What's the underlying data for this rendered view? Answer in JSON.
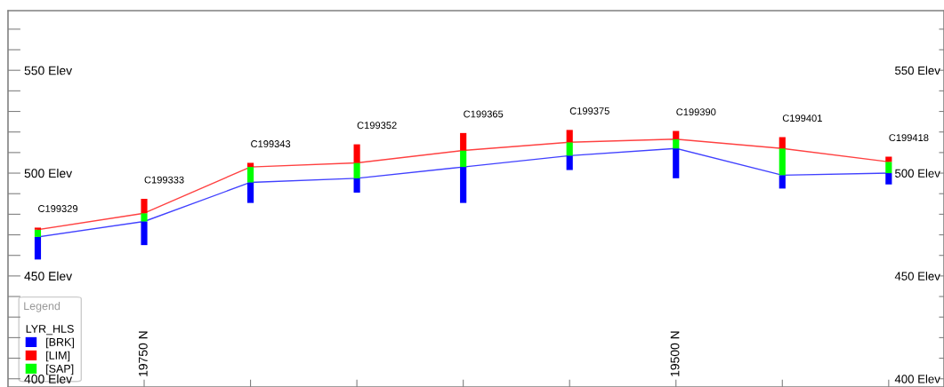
{
  "chart_data": {
    "type": "bar",
    "legend": "bottom left",
    "legend_title": "LYR_HLS",
    "x": [
      19800,
      19750,
      19700,
      19650,
      19600,
      19550,
      19500,
      19450,
      19400
    ],
    "series": [
      {
        "name": "[BRK]",
        "color": "#0000ff",
        "base": [
          458,
          465,
          485.5,
          490.5,
          485.5,
          501.5,
          497.5,
          492.5,
          494.5
        ],
        "values": [
          11,
          11.5,
          10,
          7,
          17.5,
          7,
          14.5,
          6.5,
          5.5
        ]
      },
      {
        "name": "[SAP]",
        "color": "#00ff00",
        "base": [
          469,
          476.5,
          495.5,
          497.5,
          503,
          508.5,
          512,
          499,
          500
        ],
        "values": [
          3.5,
          4,
          7.5,
          7.5,
          8,
          6.5,
          4.5,
          13,
          5.5
        ]
      },
      {
        "name": "[LIM]",
        "color": "#ff0000",
        "base": [
          472.5,
          480.5,
          503,
          505,
          511,
          515,
          516.5,
          512,
          505.5
        ],
        "values": [
          1,
          7,
          2,
          9,
          8.5,
          6,
          4,
          5.5,
          2.5
        ]
      },
      {
        "type": "line",
        "color": "#ff0000",
        "x": [
          19800,
          19750,
          19700,
          19650,
          19600,
          19550,
          19500,
          19450,
          19400
        ],
        "values": [
          472.5,
          480.5,
          503,
          505,
          511,
          515,
          516.5,
          512,
          505.5
        ]
      },
      {
        "type": "line",
        "color": "#0000ff",
        "x": [
          19800,
          19750,
          19700,
          19650,
          19600,
          19550,
          19500,
          19450,
          19400
        ],
        "values": [
          469,
          476.5,
          495.5,
          497.5,
          503,
          508.5,
          512,
          499,
          500
        ]
      }
    ],
    "annotations": [
      "Legend",
      {
        "text": "C199329",
        "x": 19800,
        "y": 473.5
      },
      {
        "text": "C199333",
        "x": 19750,
        "y": 487.5
      },
      {
        "text": "C199343",
        "x": 19700,
        "y": 505
      },
      {
        "text": "C199352",
        "x": 19650,
        "y": 514
      },
      {
        "text": "C199365",
        "x": 19600,
        "y": 519.5
      },
      {
        "text": "C199375",
        "x": 19550,
        "y": 521
      },
      {
        "text": "C199390",
        "x": 19500,
        "y": 520.5
      },
      {
        "text": "C199401",
        "x": 19450,
        "y": 517.5
      },
      {
        "text": "C199418",
        "x": 19400,
        "y": 508
      }
    ],
    "xlim": [
      19814,
      19374
    ],
    "xticks": [
      {
        "value": 19750,
        "label": "19750 N"
      },
      {
        "value": 19700,
        "label": null
      },
      {
        "value": 19650,
        "label": null
      },
      {
        "value": 19600,
        "label": null
      },
      {
        "value": 19550,
        "label": null
      },
      {
        "value": 19500,
        "label": "19500 N"
      },
      {
        "value": 19450,
        "label": null
      },
      {
        "value": 19400,
        "label": null
      }
    ],
    "ylim": [
      396,
      579
    ],
    "yticks": [
      {
        "value": 570,
        "label": null
      },
      {
        "value": 560,
        "label": null
      },
      {
        "value": 550,
        "label": "550 Elev"
      },
      {
        "value": 540,
        "label": null
      },
      {
        "value": 530,
        "label": null
      },
      {
        "value": 520,
        "label": null
      },
      {
        "value": 510,
        "label": null
      },
      {
        "value": 500,
        "label": "500 Elev"
      },
      {
        "value": 490,
        "label": null
      },
      {
        "value": 480,
        "label": null
      },
      {
        "value": 470,
        "label": null
      },
      {
        "value": 460,
        "label": null
      },
      {
        "value": 450,
        "label": "450 Elev"
      },
      {
        "value": 440,
        "label": null
      },
      {
        "value": 430,
        "label": null
      },
      {
        "value": 420,
        "label": null
      },
      {
        "value": 410,
        "label": null
      },
      {
        "value": 400,
        "label": "400 Elev"
      }
    ],
    "y2lim": [
      396,
      579
    ],
    "y2ticks": [
      {
        "value": 570,
        "label": null
      },
      {
        "value": 560,
        "label": null
      },
      {
        "value": 550,
        "label": "550 Elev"
      },
      {
        "value": 540,
        "label": null
      },
      {
        "value": 530,
        "label": null
      },
      {
        "value": 520,
        "label": null
      },
      {
        "value": 510,
        "label": null
      },
      {
        "value": 500,
        "label": "500 Elev"
      },
      {
        "value": 490,
        "label": null
      },
      {
        "value": 480,
        "label": null
      },
      {
        "value": 470,
        "label": null
      },
      {
        "value": 460,
        "label": null
      },
      {
        "value": 450,
        "label": "450 Elev"
      },
      {
        "value": 440,
        "label": null
      },
      {
        "value": 430,
        "label": null
      },
      {
        "value": 420,
        "label": null
      },
      {
        "value": 410,
        "label": null
      },
      {
        "value": 400,
        "label": "400 Elev"
      }
    ]
  }
}
